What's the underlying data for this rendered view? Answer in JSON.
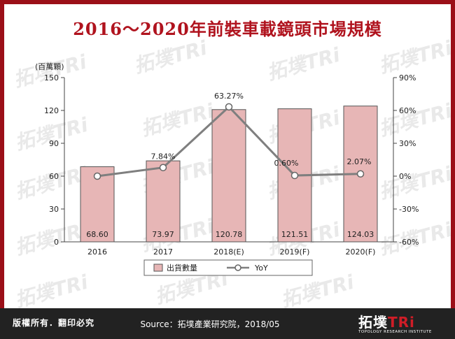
{
  "title": "2016～2020年前裝車載鏡頭市場規模",
  "footer": {
    "rights": "版權所有．翻印必究",
    "source": "Source：拓墣產業研究院，2018/05",
    "logo_main_1": "拓墣",
    "logo_main_2": "TRi",
    "logo_sub": "TOPOLOGY RESEARCH INSTITUTE"
  },
  "colors": {
    "frame": "#9b0f18",
    "title": "#b0131e",
    "bar_fill": "#e7b6b6",
    "bar_stroke": "#555555",
    "line": "#7f7f7f"
  },
  "chart_data": {
    "type": "bar+line",
    "title": "2016～2020年前裝車載鏡頭市場規模",
    "y_unit_label": "(百萬顆)",
    "categories": [
      "2016",
      "2017",
      "2018(E)",
      "2019(F)",
      "2020(F)"
    ],
    "series": [
      {
        "name": "出貨數量",
        "type": "bar",
        "axis": "left",
        "values": [
          68.6,
          73.97,
          120.78,
          121.51,
          124.03
        ],
        "labels": [
          "68.60",
          "73.97",
          "120.78",
          "121.51",
          "124.03"
        ]
      },
      {
        "name": "YoY",
        "type": "line",
        "axis": "right",
        "values": [
          null,
          7.84,
          63.27,
          0.6,
          2.07
        ],
        "labels": [
          "",
          "7.84%",
          "63.27%",
          "0.60%",
          "2.07%"
        ],
        "marker_values": [
          0,
          7.84,
          63.27,
          0.6,
          2.07
        ]
      }
    ],
    "y_left": {
      "min": 0,
      "max": 150,
      "ticks": [
        "0",
        "30",
        "60",
        "90",
        "120",
        "150"
      ]
    },
    "y_right": {
      "min": -60,
      "max": 90,
      "ticks": [
        "-60%",
        "-30%",
        "0%",
        "30%",
        "60%",
        "90%"
      ]
    },
    "legend_placement": "bottom-center",
    "grid": false
  }
}
